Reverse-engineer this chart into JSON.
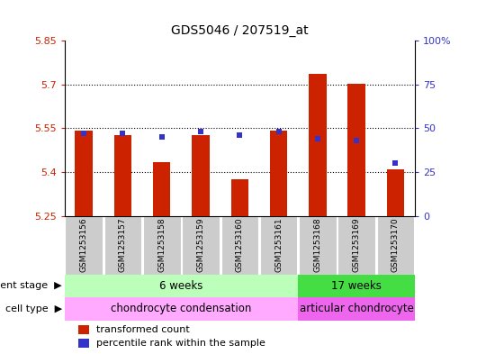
{
  "title": "GDS5046 / 207519_at",
  "samples": [
    "GSM1253156",
    "GSM1253157",
    "GSM1253158",
    "GSM1253159",
    "GSM1253160",
    "GSM1253161",
    "GSM1253168",
    "GSM1253169",
    "GSM1253170"
  ],
  "bar_values": [
    5.543,
    5.527,
    5.435,
    5.527,
    5.375,
    5.543,
    5.735,
    5.703,
    5.41
  ],
  "percentile_values": [
    47,
    47,
    45,
    48,
    46,
    48,
    44,
    43,
    30
  ],
  "y_min": 5.25,
  "y_max": 5.85,
  "y_ticks": [
    5.25,
    5.4,
    5.55,
    5.7,
    5.85
  ],
  "y_ticks_right": [
    0,
    25,
    50,
    75,
    100
  ],
  "bar_color": "#cc2200",
  "dot_color": "#3333cc",
  "bar_base": 5.25,
  "bar_width": 0.45,
  "dev_stage_groups": [
    {
      "label": "6 weeks",
      "start": 0,
      "end": 5,
      "color": "#bbffbb"
    },
    {
      "label": "17 weeks",
      "start": 6,
      "end": 8,
      "color": "#44dd44"
    }
  ],
  "cell_type_groups": [
    {
      "label": "chondrocyte condensation",
      "start": 0,
      "end": 5,
      "color": "#ffaaff"
    },
    {
      "label": "articular chondrocyte",
      "start": 6,
      "end": 8,
      "color": "#ee66ee"
    }
  ],
  "dev_stage_label": "development stage",
  "cell_type_label": "cell type",
  "legend_bar_label": "transformed count",
  "legend_dot_label": "percentile rank within the sample",
  "background_color": "#ffffff",
  "plot_bg_color": "#ffffff",
  "sample_col_color": "#cccccc",
  "grid_lines": [
    5.4,
    5.55,
    5.7
  ],
  "dot_size": 22
}
